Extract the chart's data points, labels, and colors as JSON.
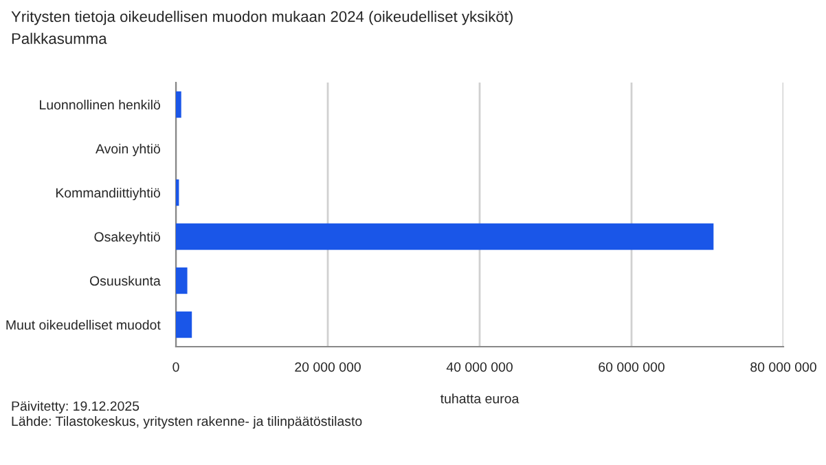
{
  "chart_data": {
    "type": "bar",
    "orientation": "horizontal",
    "title": "Yritysten tietoja oikeudellisen muodon mukaan 2024 (oikeudelliset yksiköt)",
    "subtitle": "Palkkasumma",
    "categories": [
      "Luonnollinen henkilö",
      "Avoin yhtiö",
      "Kommandiittiyhtiö",
      "Osakeyhtiö",
      "Osuuskunta",
      "Muut oikeudelliset muodot"
    ],
    "values": [
      700000,
      0,
      400000,
      70800000,
      1500000,
      2100000
    ],
    "color": "#1a56e8",
    "xlabel": "tuhatta euroa",
    "xlim": [
      0,
      80000000
    ],
    "xticks": [
      0,
      {
        "value": 20000000,
        "label": "20 000 000"
      },
      {
        "value": 40000000,
        "label": "40 000 000"
      },
      {
        "value": 60000000,
        "label": "60 000 000"
      },
      {
        "value": 80000000,
        "label": "80 000 000"
      }
    ],
    "grid": "x",
    "annotations": [
      "Päivitetty: 19.12.2025",
      "Lähde: Tilastokeskus, yritysten rakenne- ja tilinpäätöstilasto"
    ]
  }
}
